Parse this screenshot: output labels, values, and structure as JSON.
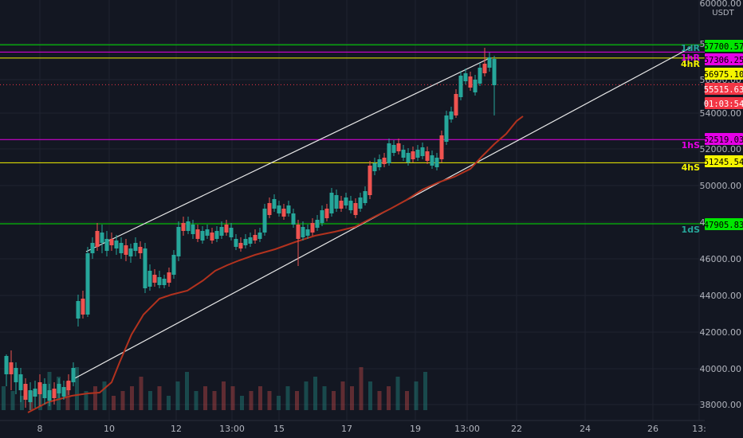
{
  "chart_data": {
    "type": "candlestick",
    "unit": "USDT",
    "y_axis_top_value": "60000.00",
    "y_ticks": [
      "58000.00",
      "56000.00",
      "54000.00",
      "52000.00",
      "50000.00",
      "48000.00",
      "46000.00",
      "44000.00",
      "42000.00",
      "40000.00",
      "38000.00"
    ],
    "x_ticks": [
      "8",
      "10",
      "12",
      "13:00",
      "15",
      "17",
      "19",
      "13:00",
      "22",
      "24",
      "26",
      "13:"
    ],
    "levels": [
      {
        "name": "1dR",
        "label": "1dR",
        "price": 57700.57,
        "price_label": "57700.57",
        "color": "#00e600",
        "label_color": "#26a69a"
      },
      {
        "name": "1hR",
        "label": "1hR",
        "price": 57306.25,
        "price_label": "57306.25",
        "color": "#e600e6",
        "label_color": "#e600e6"
      },
      {
        "name": "4hR",
        "label": "4hR",
        "price": 56975.1,
        "price_label": "56975.10",
        "color": "#f5f500",
        "label_color": "#f5f500"
      },
      {
        "name": "1hS",
        "label": "1hS",
        "price": 52519.03,
        "price_label": "52519.03",
        "color": "#e600e6",
        "label_color": "#e600e6"
      },
      {
        "name": "4hS",
        "label": "4hS",
        "price": 51245.54,
        "price_label": "51245.54",
        "color": "#f5f500",
        "label_color": "#f5f500"
      },
      {
        "name": "1dS",
        "label": "1dS",
        "price": 47905.83,
        "price_label": "47905.83",
        "color": "#00e600",
        "label_color": "#26a69a"
      }
    ],
    "current_price": {
      "value": 55515.63,
      "label": "55515.63",
      "countdown": "01:03:54",
      "color": "#f23645"
    },
    "channel": {
      "upper": [
        [
          0.0,
          46400
        ],
        [
          21.0,
          57700
        ]
      ],
      "lower": [
        [
          -3.3,
          39300
        ],
        [
          21.0,
          57700
        ]
      ]
    },
    "moving_average": [
      [
        -7.5,
        37400
      ],
      [
        -6,
        37600
      ],
      [
        -4.5,
        38000
      ],
      [
        -3,
        38600
      ],
      [
        -1.5,
        39100
      ],
      [
        -0.8,
        39400
      ],
      [
        0,
        40500
      ],
      [
        1,
        42300
      ],
      [
        2,
        43800
      ],
      [
        3,
        44700
      ],
      [
        4,
        45400
      ],
      [
        5,
        45700
      ],
      [
        6,
        46200
      ],
      [
        7,
        46700
      ],
      [
        8,
        46900
      ],
      [
        9,
        47300
      ],
      [
        10,
        47500
      ],
      [
        11,
        47600
      ],
      [
        12,
        47800
      ],
      [
        13,
        48400
      ],
      [
        14,
        49200
      ],
      [
        15,
        50300
      ],
      [
        16,
        50800
      ],
      [
        17,
        51300
      ],
      [
        18,
        52300
      ],
      [
        19,
        53200
      ],
      [
        20,
        53800
      ]
    ],
    "candles": [
      {
        "t": -7.5,
        "o": 40900,
        "h": 41200,
        "l": 39300,
        "c": 40300
      },
      {
        "t": -7.0,
        "o": 40300,
        "h": 40900,
        "l": 39100,
        "c": 39900
      },
      {
        "t": -6.5,
        "o": 39900,
        "h": 40200,
        "l": 38700,
        "c": 39000
      },
      {
        "t": -6.0,
        "o": 39000,
        "h": 39600,
        "l": 38300,
        "c": 38800
      },
      {
        "t": -5.5,
        "o": 38800,
        "h": 39300,
        "l": 37800,
        "c": 38400
      },
      {
        "t": -5.0,
        "o": 38400,
        "h": 38900,
        "l": 37500,
        "c": 37700
      },
      {
        "t": -4.5,
        "o": 37700,
        "h": 38500,
        "l": 37300,
        "c": 38200
      },
      {
        "t": -4.0,
        "o": 38200,
        "h": 38800,
        "l": 37800,
        "c": 38500
      },
      {
        "t": -3.5,
        "o": 38500,
        "h": 39300,
        "l": 38200,
        "c": 39000
      },
      {
        "t": -3.0,
        "o": 39000,
        "h": 39500,
        "l": 38600,
        "c": 38800
      },
      {
        "t": -2.5,
        "o": 38800,
        "h": 40300,
        "l": 38700,
        "c": 40000
      },
      {
        "t": -2.0,
        "o": 40000,
        "h": 42400,
        "l": 39800,
        "c": 42200
      },
      {
        "t": -1.5,
        "o": 42200,
        "h": 44300,
        "l": 41800,
        "c": 44000
      },
      {
        "t": -1.0,
        "o": 44000,
        "h": 44400,
        "l": 42600,
        "c": 43000
      },
      {
        "t": -0.5,
        "o": 43000,
        "h": 46700,
        "l": 42800,
        "c": 46400
      },
      {
        "t": 0.0,
        "o": 46400,
        "h": 47200,
        "l": 45800,
        "c": 46900
      },
      {
        "t": 0.5,
        "o": 46900,
        "h": 47500,
        "l": 45900,
        "c": 46200
      },
      {
        "t": 1.0,
        "o": 46200,
        "h": 47400,
        "l": 45600,
        "c": 47000
      },
      {
        "t": 1.5,
        "o": 47000,
        "h": 47500,
        "l": 46100,
        "c": 46500
      },
      {
        "t": 2.0,
        "o": 46500,
        "h": 47000,
        "l": 45800,
        "c": 46400
      },
      {
        "t": 2.5,
        "o": 46400,
        "h": 46900,
        "l": 45700,
        "c": 46200
      },
      {
        "t": 3.0,
        "o": 46200,
        "h": 46600,
        "l": 44100,
        "c": 44400
      },
      {
        "t": 3.5,
        "o": 44400,
        "h": 45300,
        "l": 44000,
        "c": 45000
      },
      {
        "t": 4.0,
        "o": 45000,
        "h": 45200,
        "l": 44000,
        "c": 44300
      },
      {
        "t": 4.5,
        "o": 44300,
        "h": 44900,
        "l": 43900,
        "c": 44800
      },
      {
        "t": 5.0,
        "o": 44800,
        "h": 46400,
        "l": 44700,
        "c": 46200
      },
      {
        "t": 5.5,
        "o": 46200,
        "h": 48000,
        "l": 46000,
        "c": 47700
      },
      {
        "t": 6.0,
        "o": 47700,
        "h": 48100,
        "l": 47200,
        "c": 47800
      },
      {
        "t": 6.5,
        "o": 47800,
        "h": 48200,
        "l": 47300,
        "c": 47500
      },
      {
        "t": 7.0,
        "o": 47500,
        "h": 48300,
        "l": 46800,
        "c": 47200
      },
      {
        "t": 7.5,
        "o": 47200,
        "h": 47800,
        "l": 46600,
        "c": 47000
      },
      {
        "t": 8.0,
        "o": 47000,
        "h": 47500,
        "l": 46500,
        "c": 46800
      },
      {
        "t": 8.5,
        "o": 46800,
        "h": 47600,
        "l": 46500,
        "c": 47300
      },
      {
        "t": 9.0,
        "o": 47300,
        "h": 47800,
        "l": 46700,
        "c": 47000
      },
      {
        "t": 9.5,
        "o": 47000,
        "h": 47300,
        "l": 46300,
        "c": 46600
      },
      {
        "t": 10.0,
        "o": 46600,
        "h": 46900,
        "l": 46100,
        "c": 46400
      },
      {
        "t": 10.5,
        "o": 46400,
        "h": 47100,
        "l": 46200,
        "c": 46900
      },
      {
        "t": 11.0,
        "o": 46900,
        "h": 47400,
        "l": 46500,
        "c": 47100
      },
      {
        "t": 11.5,
        "o": 47100,
        "h": 47300,
        "l": 46600,
        "c": 46800
      },
      {
        "t": 12.0,
        "o": 46800,
        "h": 48100,
        "l": 46700,
        "c": 47900
      },
      {
        "t": 12.5,
        "o": 47900,
        "h": 49300,
        "l": 47700,
        "c": 49000
      },
      {
        "t": 13.0,
        "o": 49000,
        "h": 49600,
        "l": 48500,
        "c": 49200
      },
      {
        "t": 13.5,
        "o": 49200,
        "h": 49700,
        "l": 48400,
        "c": 48700
      },
      {
        "t": 14.0,
        "o": 48700,
        "h": 49200,
        "l": 48200,
        "c": 48500
      },
      {
        "t": 14.5,
        "o": 48500,
        "h": 48900,
        "l": 47900,
        "c": 48100
      },
      {
        "t": 15.0,
        "o": 48100,
        "h": 48500,
        "l": 45800,
        "c": 47000
      },
      {
        "t": 15.5,
        "o": 47000,
        "h": 48000,
        "l": 46600,
        "c": 47700
      },
      {
        "t": 16.0,
        "o": 47700,
        "h": 48000,
        "l": 47100,
        "c": 47400
      },
      {
        "t": 16.5,
        "o": 47400,
        "h": 47800,
        "l": 46900,
        "c": 47100
      },
      {
        "t": 17.0,
        "o": 47100,
        "h": 48800,
        "l": 47000,
        "c": 48600
      },
      {
        "t": 17.5,
        "o": 48600,
        "h": 48800,
        "l": 47600,
        "c": 47900
      },
      {
        "t": 18.0,
        "o": 47900,
        "h": 49600,
        "l": 47700,
        "c": 49300
      },
      {
        "t": 18.5,
        "o": 49300,
        "h": 50500,
        "l": 49100,
        "c": 50300
      }
    ],
    "volumes": [
      4,
      5,
      3,
      6,
      4,
      7,
      5,
      4,
      3,
      4,
      5,
      8,
      7,
      6,
      9,
      4,
      5,
      6,
      3,
      4,
      5,
      7,
      4,
      5,
      3,
      6,
      8,
      4,
      5,
      4,
      6,
      5,
      3,
      4,
      5,
      4,
      3,
      5,
      4,
      6,
      7,
      5,
      4,
      6,
      5,
      9,
      6,
      4,
      5,
      7,
      4,
      6,
      8
    ],
    "grid": true,
    "legend": "none"
  }
}
